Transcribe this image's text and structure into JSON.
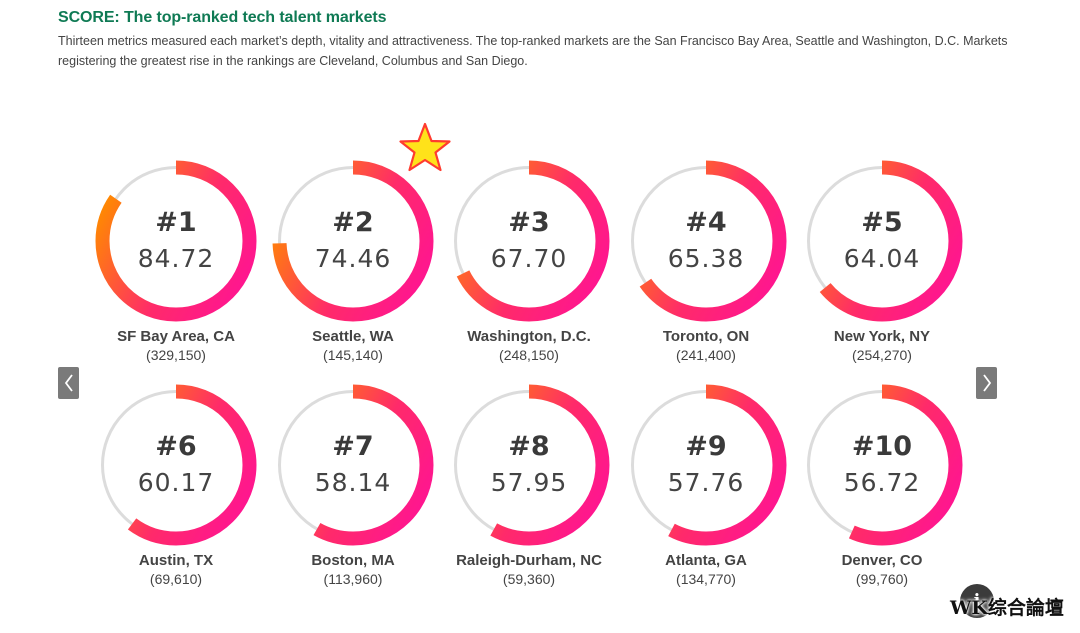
{
  "header": {
    "title": "SCORE: The top-ranked tech talent markets",
    "subtitle": "Thirteen metrics measured each market’s depth, vitality and attractiveness. The top-ranked markets are the San Francisco Bay Area, Seattle and Washington, D.C. Markets registering the greatest rise in the rankings are Cleveland, Columbus and San Diego."
  },
  "chart_data": {
    "type": "radial-gauge",
    "scale_max": 100,
    "items": [
      {
        "rank": "#1",
        "score": "84.72",
        "value": 84.72,
        "city": "SF Bay Area, CA",
        "count": "(329,150)"
      },
      {
        "rank": "#2",
        "score": "74.46",
        "value": 74.46,
        "city": "Seattle, WA",
        "count": "(145,140)"
      },
      {
        "rank": "#3",
        "score": "67.70",
        "value": 67.7,
        "city": "Washington, D.C.",
        "count": "(248,150)"
      },
      {
        "rank": "#4",
        "score": "65.38",
        "value": 65.38,
        "city": "Toronto, ON",
        "count": "(241,400)"
      },
      {
        "rank": "#5",
        "score": "64.04",
        "value": 64.04,
        "city": "New York, NY",
        "count": "(254,270)"
      },
      {
        "rank": "#6",
        "score": "60.17",
        "value": 60.17,
        "city": "Austin, TX",
        "count": "(69,610)"
      },
      {
        "rank": "#7",
        "score": "58.14",
        "value": 58.14,
        "city": "Boston, MA",
        "count": "(113,960)"
      },
      {
        "rank": "#8",
        "score": "57.95",
        "value": 57.95,
        "city": "Raleigh-Durham, NC",
        "count": "(59,360)"
      },
      {
        "rank": "#9",
        "score": "57.76",
        "value": 57.76,
        "city": "Atlanta, GA",
        "count": "(134,770)"
      },
      {
        "rank": "#10",
        "score": "56.72",
        "value": 56.72,
        "city": "Denver, CO",
        "count": "(99,760)"
      }
    ],
    "colors": {
      "gradient_start": "#ff8a00",
      "gradient_end": "#ff1493",
      "track": "#dcdcdc"
    }
  },
  "controls": {
    "prev_icon": "chevron-left-icon",
    "next_icon": "chevron-right-icon",
    "info_icon": "info-icon",
    "info_symbol": "i"
  },
  "highlight": {
    "icon": "star-icon",
    "color": "#ffe21a"
  },
  "watermark": {
    "text": "WK综合論壇"
  }
}
